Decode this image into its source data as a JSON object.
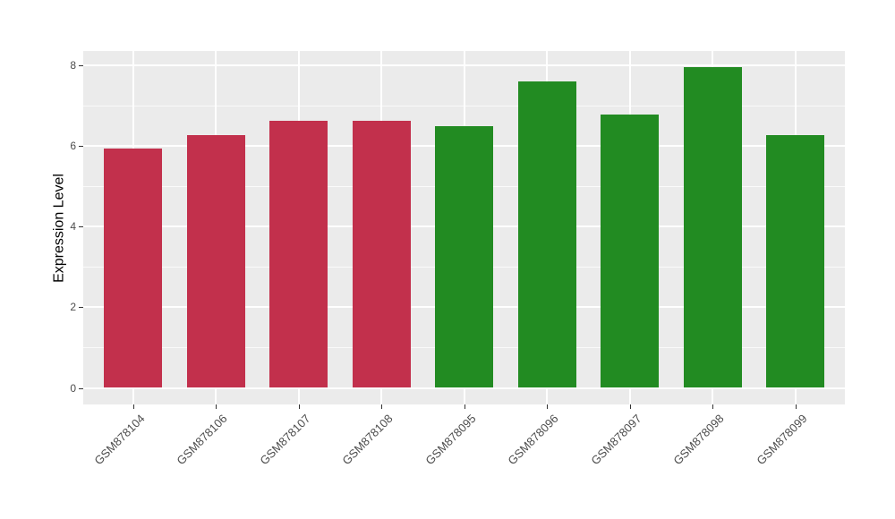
{
  "chart_data": {
    "type": "bar",
    "title": "",
    "xlabel": "",
    "ylabel": "Expression Level",
    "categories": [
      "GSM878104",
      "GSM878106",
      "GSM878107",
      "GSM878108",
      "GSM878095",
      "GSM878096",
      "GSM878097",
      "GSM878098",
      "GSM878099"
    ],
    "values": [
      5.94,
      6.28,
      6.63,
      6.63,
      6.5,
      7.61,
      6.77,
      7.96,
      6.28
    ],
    "bar_colors": [
      "#C2304C",
      "#C2304C",
      "#C2304C",
      "#C2304C",
      "#228B22",
      "#228B22",
      "#228B22",
      "#228B22",
      "#228B22"
    ],
    "group_colors": {
      "red_group": "#C2304C",
      "green_group": "#228B22"
    },
    "yticks": [
      0,
      2,
      4,
      6,
      8
    ],
    "minor_yticks": [
      1,
      3,
      5,
      7
    ],
    "ylim": [
      -0.4,
      8.36
    ],
    "grid": "on",
    "legend": "none",
    "style": {
      "panel_bg": "#EBEBEB",
      "grid_color": "#FFFFFF",
      "tick_color": "#333333",
      "axis_text_color": "#4D4D4D",
      "axis_title_color": "#000000",
      "figure_bg": "#FFFFFF"
    }
  }
}
